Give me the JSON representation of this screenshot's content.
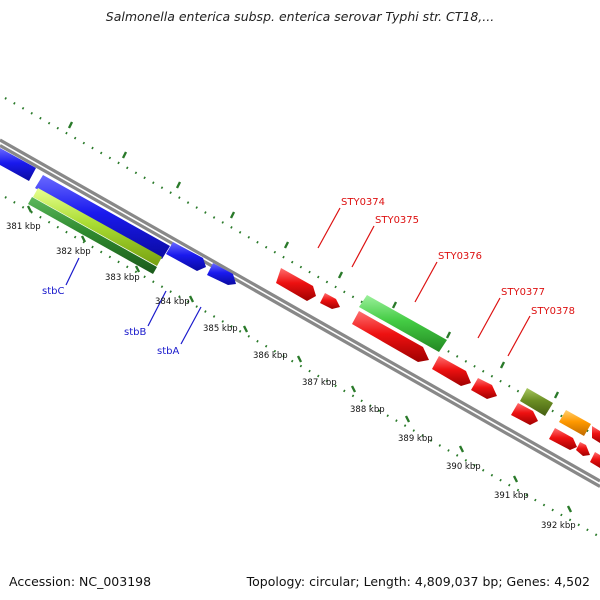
{
  "title": "Salmonella enterica subsp. enterica serovar Typhi str. CT18,...",
  "footer": {
    "accession": "Accession: NC_003198",
    "summary": "Topology: circular; Length: 4,809,037 bp; Genes: 4,502"
  },
  "scale": {
    "unit": "kbp",
    "labels": [
      "381 kbp",
      "382 kbp",
      "383 kbp",
      "384 kbp",
      "385 kbp",
      "386 kbp",
      "387 kbp",
      "388 kbp",
      "389 kbp",
      "390 kbp",
      "391 kbp",
      "392 kbp"
    ]
  },
  "genes": {
    "left": [
      "stbC",
      "stbB",
      "stbA"
    ],
    "right": [
      "STY0374",
      "STY0375",
      "STY0376",
      "STY0377",
      "STY0378"
    ]
  },
  "colors": {
    "background": "#ffffff",
    "blue_label": "#1a1acc",
    "red_label": "#dd1111",
    "blue_feature": "#1a1aee",
    "red_feature": "#ee1111",
    "green_feature": "#44cc44",
    "lime_feature": "#aadd33",
    "dark_green_feature": "#2f8a2f",
    "olive_feature": "#6b8e23",
    "orange_feature": "#ff9900",
    "backbone": "#888888",
    "dotted_guide": "#2a7a2a"
  }
}
